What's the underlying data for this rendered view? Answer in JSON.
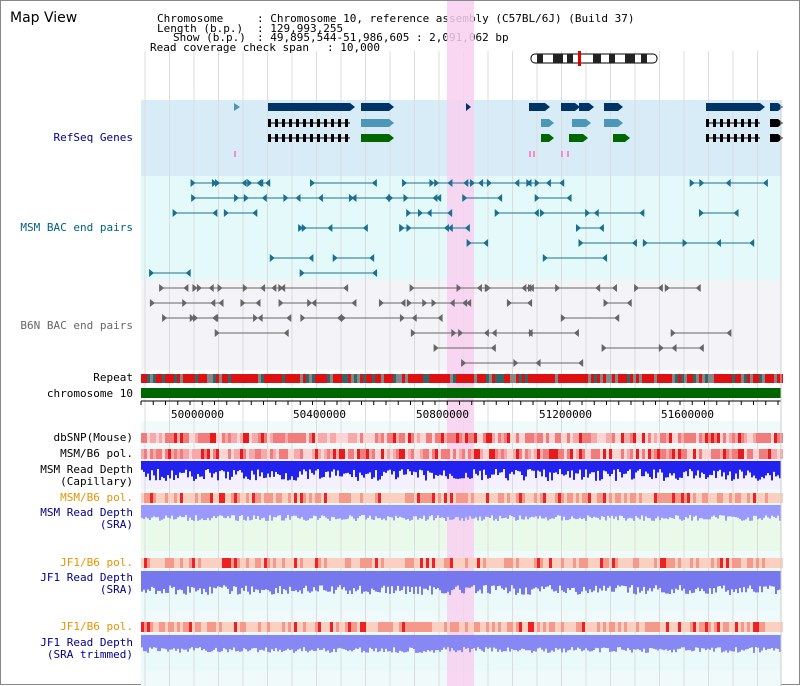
{
  "panel_title": "Map View",
  "info": {
    "chromosome_label": "Chromosome",
    "chromosome_value": ": Chromosome 10, reference assembly (C57BL/6J) (Build 37)",
    "length_label": "Length (b.p.)",
    "length_value": ": 129,993,255",
    "show_label": "Show (b.p.)",
    "show_value": ": 49,895,544-51,986,605 : 2,091,062 bp",
    "span_label": "Read coverage check span",
    "span_value": ": 10,000"
  },
  "tracks": {
    "refseq": "RefSeq Genes",
    "msm_bac": "MSM BAC end pairs",
    "b6n_bac": "B6N BAC end pairs",
    "repeat": "Repeat",
    "chromosome": "chromosome 10",
    "dbsnp": "dbSNP(Mouse)",
    "msm_b6_pol_1": "MSM/B6 pol.",
    "msm_read_depth_cap_1": "MSM Read Depth",
    "msm_read_depth_cap_2": "(Capillary)",
    "msm_b6_pol_2": "MSM/B6 pol.",
    "msm_read_depth_sra_1": "MSM Read Depth",
    "msm_read_depth_sra_2": "(SRA)",
    "jf1_b6_pol_1": "JF1/B6 pol.",
    "jf1_read_depth_sra_1": "JF1 Read Depth",
    "jf1_read_depth_sra_2": "(SRA)",
    "jf1_b6_pol_2": "JF1/B6 pol.",
    "jf1_read_depth_trim_1": "JF1 Read Depth",
    "jf1_read_depth_trim_2": "(SRA trimmed)"
  },
  "axis_ticks": [
    "50000000",
    "50400000",
    "50800000",
    "51200000",
    "51600000"
  ],
  "colors": {
    "refseq_bg": "#d8ecf8",
    "msm_bg": "#e4fafa",
    "b6n_bg": "#f4f4f8",
    "highlight": "#f8d0f0",
    "gene_dark": "#003366",
    "gene_mid": "#4c96b8",
    "gene_green": "#006600",
    "chrom_bar": "#006600",
    "depth_blue": "#3333ff"
  }
}
